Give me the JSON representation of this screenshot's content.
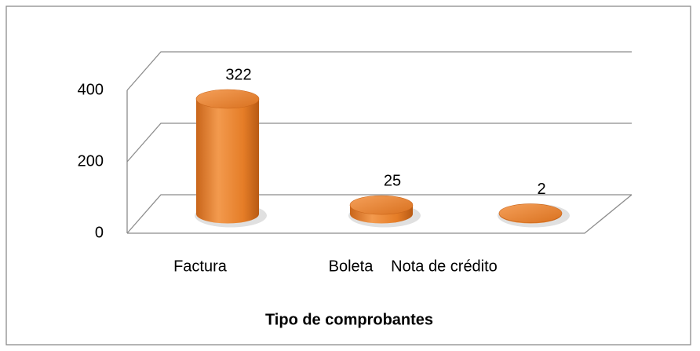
{
  "chart_data": {
    "type": "bar",
    "style": "3d-cylinder",
    "x_label": "Tipo de comprobantes",
    "categories": [
      "Factura",
      "Boleta",
      "Nota de crédito"
    ],
    "values": [
      322,
      25,
      2
    ],
    "color": "#e57d27",
    "ylim": [
      0,
      400
    ],
    "yticks": [
      0,
      200,
      400
    ],
    "grid": true
  }
}
